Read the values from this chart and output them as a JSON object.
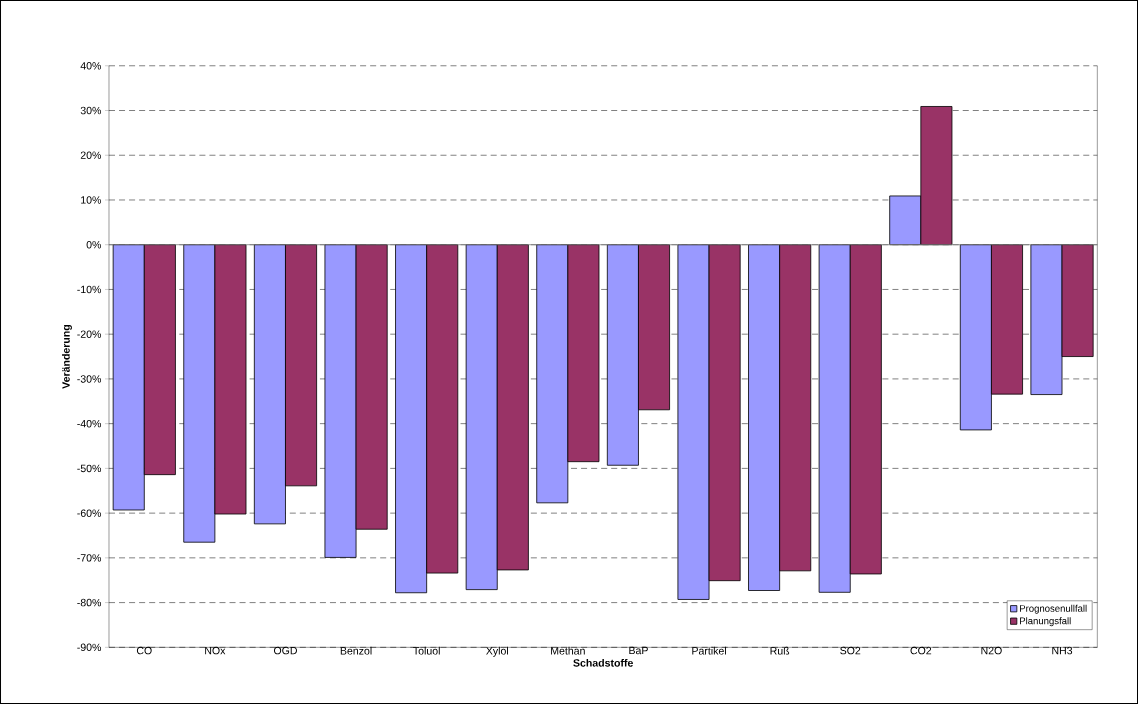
{
  "chart_data": {
    "type": "bar",
    "xlabel": "Schadstoffe",
    "ylabel": "Veränderung",
    "categories": [
      "CO",
      "NOx",
      "OGD",
      "Benzol",
      "Toluol",
      "Xylol",
      "Methan",
      "BaP",
      "Partikel",
      "Ruß",
      "SO2",
      "CO2",
      "N2O",
      "NH3"
    ],
    "series": [
      {
        "name": "Prognosenullfall",
        "color": "#9999ff",
        "values": [
          -59.3,
          -66.5,
          -62.4,
          -69.9,
          -77.8,
          -77.1,
          -57.7,
          -49.3,
          -79.3,
          -77.3,
          -77.7,
          10.9,
          -41.4,
          -33.5
        ]
      },
      {
        "name": "Planungsfall",
        "color": "#993366",
        "values": [
          -51.4,
          -60.2,
          -53.9,
          -63.6,
          -73.4,
          -72.7,
          -48.5,
          -36.9,
          -75.1,
          -72.9,
          -73.6,
          30.9,
          -33.4,
          -25.0
        ]
      }
    ],
    "ylim": [
      -90,
      40
    ],
    "yticks": [
      {
        "value": -90,
        "label": "-90%"
      },
      {
        "value": -80,
        "label": "-80%"
      },
      {
        "value": -70,
        "label": "-70%"
      },
      {
        "value": -60,
        "label": "-60%"
      },
      {
        "value": -50,
        "label": "-50%"
      },
      {
        "value": -40,
        "label": "-40%"
      },
      {
        "value": -30,
        "label": "-30%"
      },
      {
        "value": -20,
        "label": "-20%"
      },
      {
        "value": -10,
        "label": "-10%"
      },
      {
        "value": 0,
        "label": "0%"
      },
      {
        "value": 10,
        "label": "10%"
      },
      {
        "value": 20,
        "label": "20%"
      },
      {
        "value": 30,
        "label": "30%"
      },
      {
        "value": 40,
        "label": "40%"
      }
    ],
    "grid": "y",
    "legend": "bottom right"
  }
}
